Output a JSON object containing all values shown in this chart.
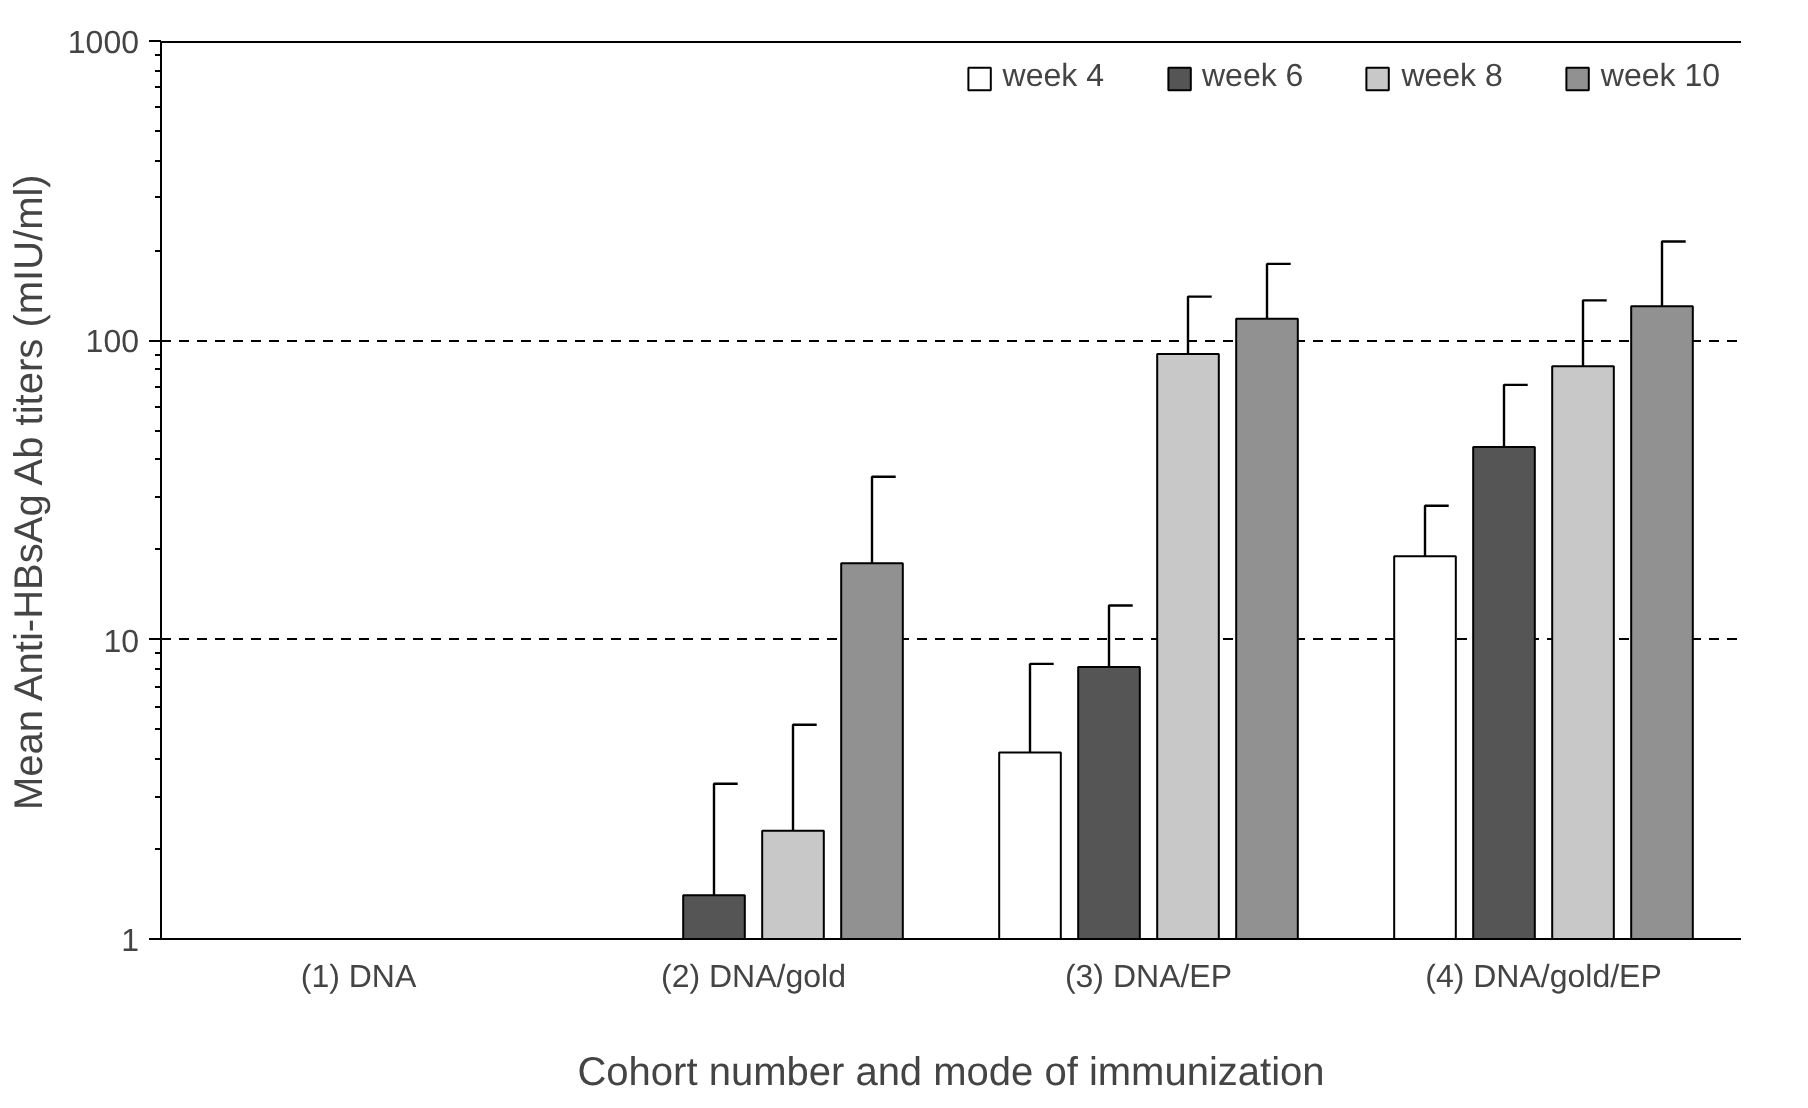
{
  "chart_data": {
    "type": "bar",
    "xlabel": "Cohort number and mode of immunization",
    "ylabel": "Mean Anti-HBsAg Ab titers (mIU/ml)",
    "categories": [
      "(1) DNA",
      "(2) DNA/gold",
      "(3) DNA/EP",
      "(4) DNA/gold/EP"
    ],
    "series": [
      {
        "name": "week 4",
        "color": "#ffffff",
        "values": [
          null,
          null,
          4.2,
          19
        ],
        "errors": [
          null,
          null,
          [
            4.2,
            8.3
          ],
          [
            19,
            28
          ]
        ]
      },
      {
        "name": "week 6",
        "color": "#555555",
        "values": [
          null,
          1.4,
          8.1,
          44
        ],
        "errors": [
          null,
          [
            1.4,
            3.3
          ],
          [
            8.1,
            13
          ],
          [
            44,
            71
          ]
        ]
      },
      {
        "name": "week 8",
        "color": "#c8c8c8",
        "values": [
          null,
          2.3,
          90,
          82
        ],
        "errors": [
          null,
          [
            2.3,
            5.2
          ],
          [
            90,
            140
          ],
          [
            82,
            136
          ]
        ]
      },
      {
        "name": "week 10",
        "color": "#919191",
        "values": [
          null,
          18,
          118,
          130
        ],
        "errors": [
          null,
          [
            18,
            35
          ],
          [
            118,
            180
          ],
          [
            130,
            214
          ]
        ]
      }
    ],
    "log": "y",
    "ylim": [
      1,
      1000
    ],
    "yticks": [
      1,
      10,
      100,
      1000
    ],
    "grid": "y",
    "legend": "top right"
  }
}
